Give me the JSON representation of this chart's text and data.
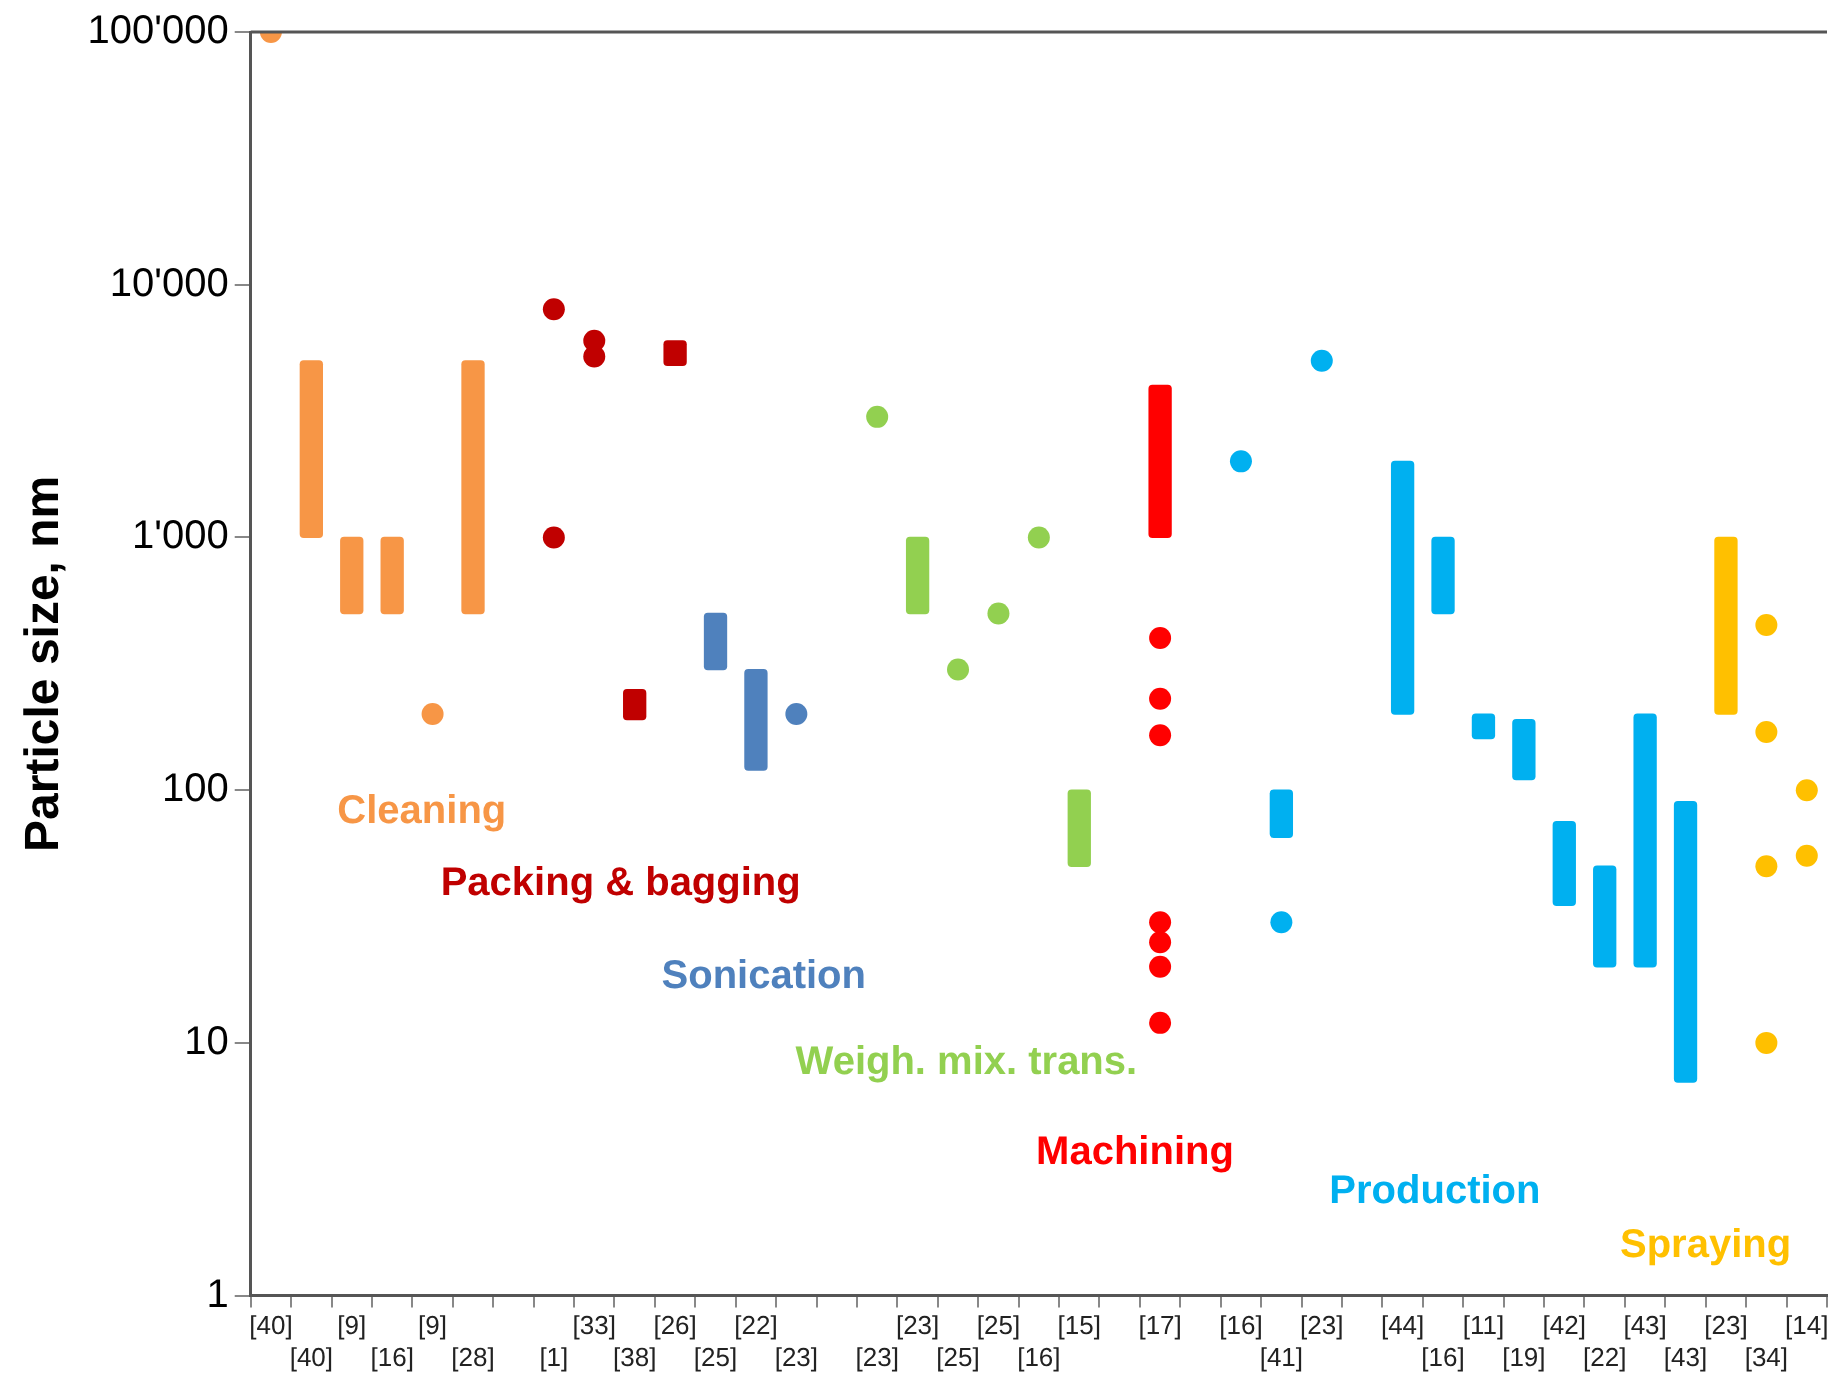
{
  "chart_data": {
    "type": "bar",
    "ylabel": "Particle size, nm",
    "log": "y",
    "grid": false,
    "marker": "circle",
    "ylim": [
      1,
      100000
    ],
    "yticks": [
      1,
      10,
      100,
      {
        "value": 1000,
        "label": "1'000"
      },
      {
        "value": 10000,
        "label": "10'000"
      },
      {
        "value": 100000,
        "label": "100'000"
      }
    ],
    "categories": [
      "[40]",
      "[40]",
      "[9]",
      "[16]",
      "[9]",
      "[28]",
      null,
      "[1]",
      "[33]",
      "[38]",
      "[26]",
      "[25]",
      "[22]",
      "[23]",
      null,
      "[23]",
      "[23]",
      "[25]",
      "[25]",
      "[16]",
      "[15]",
      null,
      "[17]",
      null,
      "[16]",
      "[41]",
      "[23]",
      null,
      "[44]",
      "[16]",
      "[11]",
      "[19]",
      "[42]",
      "[22]",
      "[43]",
      "[43]",
      "[23]",
      "[34]",
      "[14]"
    ],
    "series": [
      {
        "name": "Cleaning",
        "type": "bar",
        "color": "#f79646",
        "base": [
          null,
          1000,
          500,
          500,
          null,
          500,
          null,
          null,
          null,
          null,
          null,
          null,
          null,
          null,
          null,
          null,
          null,
          null,
          null,
          null,
          null,
          null,
          null,
          null,
          null,
          null,
          null,
          null,
          null,
          null,
          null,
          null,
          null,
          null,
          null,
          null,
          null,
          null,
          null
        ],
        "values": [
          null,
          4000,
          500,
          500,
          null,
          4500,
          null,
          null,
          null,
          null,
          null,
          null,
          null,
          null,
          null,
          null,
          null,
          null,
          null,
          null,
          null,
          null,
          null,
          null,
          null,
          null,
          null,
          null,
          null,
          null,
          null,
          null,
          null,
          null,
          null,
          null,
          null,
          null,
          null
        ]
      },
      {
        "name": "Packing & bagging",
        "type": "bar",
        "color": "#c00000",
        "base": [
          null,
          null,
          null,
          null,
          null,
          null,
          null,
          null,
          null,
          190,
          4800,
          null,
          null,
          null,
          null,
          null,
          null,
          null,
          null,
          null,
          null,
          null,
          null,
          null,
          null,
          null,
          null,
          null,
          null,
          null,
          null,
          null,
          null,
          null,
          null,
          null,
          null,
          null,
          null
        ],
        "values": [
          null,
          null,
          null,
          null,
          null,
          null,
          null,
          null,
          null,
          60,
          1200,
          null,
          null,
          null,
          null,
          null,
          null,
          null,
          null,
          null,
          null,
          null,
          null,
          null,
          null,
          null,
          null,
          null,
          null,
          null,
          null,
          null,
          null,
          null,
          null,
          null,
          null,
          null,
          null
        ]
      },
      {
        "name": "Sonication",
        "type": "bar",
        "color": "#4f81bd",
        "base": [
          null,
          null,
          null,
          null,
          null,
          null,
          null,
          null,
          null,
          null,
          null,
          300,
          120,
          null,
          null,
          null,
          null,
          null,
          null,
          null,
          null,
          null,
          null,
          null,
          null,
          null,
          null,
          null,
          null,
          null,
          null,
          null,
          null,
          null,
          null,
          null,
          null,
          null,
          null
        ],
        "values": [
          null,
          null,
          null,
          null,
          null,
          null,
          null,
          null,
          null,
          null,
          null,
          200,
          180,
          null,
          null,
          null,
          null,
          null,
          null,
          null,
          null,
          null,
          null,
          null,
          null,
          null,
          null,
          null,
          null,
          null,
          null,
          null,
          null,
          null,
          null,
          null,
          null,
          null,
          null
        ]
      },
      {
        "name": "Weigh. mix. trans.",
        "type": "bar",
        "color": "#92d050",
        "base": [
          null,
          null,
          null,
          null,
          null,
          null,
          null,
          null,
          null,
          null,
          null,
          null,
          null,
          null,
          null,
          null,
          500,
          null,
          null,
          null,
          50,
          null,
          null,
          null,
          null,
          null,
          null,
          null,
          null,
          null,
          null,
          null,
          null,
          null,
          null,
          null,
          null,
          null,
          null
        ],
        "values": [
          null,
          null,
          null,
          null,
          null,
          null,
          null,
          null,
          null,
          null,
          null,
          null,
          null,
          null,
          null,
          null,
          500,
          null,
          null,
          null,
          50,
          null,
          null,
          null,
          null,
          null,
          null,
          null,
          null,
          null,
          null,
          null,
          null,
          null,
          null,
          null,
          null,
          null,
          null
        ]
      },
      {
        "name": "Machining",
        "type": "bar",
        "color": "#ff0000",
        "base": [
          null,
          null,
          null,
          null,
          null,
          null,
          null,
          null,
          null,
          null,
          null,
          null,
          null,
          null,
          null,
          null,
          null,
          null,
          null,
          null,
          null,
          null,
          1000,
          null,
          null,
          null,
          null,
          null,
          null,
          null,
          null,
          null,
          null,
          null,
          null,
          null,
          null,
          null,
          null
        ],
        "values": [
          null,
          null,
          null,
          null,
          null,
          null,
          null,
          null,
          null,
          null,
          null,
          null,
          null,
          null,
          null,
          null,
          null,
          null,
          null,
          null,
          null,
          null,
          3000,
          null,
          null,
          null,
          null,
          null,
          null,
          null,
          null,
          null,
          null,
          null,
          null,
          null,
          null,
          null,
          null
        ]
      },
      {
        "name": "Production",
        "type": "bar",
        "color": "#00b0f0",
        "base": [
          null,
          null,
          null,
          null,
          null,
          null,
          null,
          null,
          null,
          null,
          null,
          null,
          null,
          null,
          null,
          null,
          null,
          null,
          null,
          null,
          null,
          null,
          null,
          null,
          null,
          65,
          null,
          null,
          200,
          500,
          160,
          110,
          35,
          20,
          20,
          7,
          null,
          null,
          null
        ],
        "values": [
          null,
          null,
          null,
          null,
          null,
          null,
          null,
          null,
          null,
          null,
          null,
          null,
          null,
          null,
          null,
          null,
          null,
          null,
          null,
          null,
          null,
          null,
          null,
          null,
          null,
          35,
          null,
          null,
          1800,
          500,
          40,
          80,
          40,
          30,
          180,
          83,
          null,
          null,
          null
        ]
      },
      {
        "name": "Spraying",
        "type": "bar",
        "color": "#ffc000",
        "base": [
          null,
          null,
          null,
          null,
          null,
          null,
          null,
          null,
          null,
          null,
          null,
          null,
          null,
          null,
          null,
          null,
          null,
          null,
          null,
          null,
          null,
          null,
          null,
          null,
          null,
          null,
          null,
          null,
          null,
          null,
          null,
          null,
          null,
          null,
          null,
          null,
          200,
          null,
          null
        ],
        "values": [
          null,
          null,
          null,
          null,
          null,
          null,
          null,
          null,
          null,
          null,
          null,
          null,
          null,
          null,
          null,
          null,
          null,
          null,
          null,
          null,
          null,
          null,
          null,
          null,
          null,
          null,
          null,
          null,
          null,
          null,
          null,
          null,
          null,
          null,
          null,
          null,
          800,
          null,
          null
        ]
      },
      {
        "type": "scatter",
        "values": [
          100000,
          null,
          null,
          null,
          200,
          null,
          null,
          8000,
          6000,
          null,
          null,
          null,
          null,
          200,
          null,
          3000,
          null,
          300,
          500,
          1000,
          null,
          null,
          400,
          null,
          2000,
          30,
          5000,
          null,
          null,
          null,
          null,
          null,
          null,
          null,
          null,
          null,
          null,
          450,
          100
        ],
        "colors": [
          "#f79646",
          null,
          null,
          null,
          "#f79646",
          null,
          null,
          "#c00000",
          "#c00000",
          null,
          null,
          null,
          null,
          "#4f81bd",
          null,
          "#92d050",
          null,
          "#92d050",
          "#92d050",
          "#92d050",
          null,
          null,
          "#ff0000",
          null,
          "#00b0f0",
          "#00b0f0",
          "#00b0f0",
          null,
          null,
          null,
          null,
          null,
          null,
          null,
          null,
          null,
          null,
          "#ffc000",
          "#ffc000"
        ]
      },
      {
        "type": "scatter",
        "values": [
          null,
          null,
          null,
          null,
          null,
          null,
          null,
          1000,
          5200,
          null,
          null,
          null,
          null,
          null,
          null,
          null,
          null,
          null,
          null,
          null,
          null,
          null,
          230,
          null,
          null,
          null,
          null,
          null,
          null,
          null,
          null,
          null,
          null,
          null,
          null,
          null,
          null,
          170,
          55
        ],
        "colors": [
          null,
          null,
          null,
          null,
          null,
          null,
          null,
          "#c00000",
          "#c00000",
          null,
          null,
          null,
          null,
          null,
          null,
          null,
          null,
          null,
          null,
          null,
          null,
          null,
          "#ff0000",
          null,
          null,
          null,
          null,
          null,
          null,
          null,
          null,
          null,
          null,
          null,
          null,
          null,
          null,
          "#ffc000",
          "#ffc000"
        ]
      },
      {
        "type": "scatter",
        "values": [
          null,
          null,
          null,
          null,
          null,
          null,
          null,
          null,
          null,
          null,
          null,
          null,
          null,
          null,
          null,
          null,
          null,
          null,
          null,
          null,
          null,
          null,
          165,
          null,
          null,
          null,
          null,
          null,
          null,
          null,
          null,
          null,
          null,
          null,
          null,
          null,
          null,
          50,
          null
        ],
        "colors": [
          null,
          null,
          null,
          null,
          null,
          null,
          null,
          null,
          null,
          null,
          null,
          null,
          null,
          null,
          null,
          null,
          null,
          null,
          null,
          null,
          null,
          null,
          "#ff0000",
          null,
          null,
          null,
          null,
          null,
          null,
          null,
          null,
          null,
          null,
          null,
          null,
          null,
          null,
          "#ffc000",
          null
        ]
      },
      {
        "type": "scatter",
        "values": [
          null,
          null,
          null,
          null,
          null,
          null,
          null,
          null,
          null,
          null,
          null,
          null,
          null,
          null,
          null,
          null,
          null,
          null,
          null,
          null,
          null,
          null,
          30,
          null,
          null,
          null,
          null,
          null,
          null,
          null,
          null,
          null,
          null,
          null,
          null,
          null,
          null,
          10,
          null
        ],
        "colors": [
          null,
          null,
          null,
          null,
          null,
          null,
          null,
          null,
          null,
          null,
          null,
          null,
          null,
          null,
          null,
          null,
          null,
          null,
          null,
          null,
          null,
          null,
          "#ff0000",
          null,
          null,
          null,
          null,
          null,
          null,
          null,
          null,
          null,
          null,
          null,
          null,
          null,
          null,
          "#ffc000",
          null
        ]
      },
      {
        "type": "scatter",
        "values": [
          null,
          null,
          null,
          null,
          null,
          null,
          null,
          null,
          null,
          null,
          null,
          null,
          null,
          null,
          null,
          null,
          null,
          null,
          null,
          null,
          null,
          null,
          25,
          null,
          null,
          null,
          null,
          null,
          null,
          null,
          null,
          null,
          null,
          null,
          null,
          null,
          null,
          null,
          null
        ],
        "colors": [
          null,
          null,
          null,
          null,
          null,
          null,
          null,
          null,
          null,
          null,
          null,
          null,
          null,
          null,
          null,
          null,
          null,
          null,
          null,
          null,
          null,
          null,
          "#ff0000",
          null,
          null,
          null,
          null,
          null,
          null,
          null,
          null,
          null,
          null,
          null,
          null,
          null,
          null,
          null,
          null
        ]
      },
      {
        "type": "scatter",
        "values": [
          null,
          null,
          null,
          null,
          null,
          null,
          null,
          null,
          null,
          null,
          null,
          null,
          null,
          null,
          null,
          null,
          null,
          null,
          null,
          null,
          null,
          null,
          20,
          null,
          null,
          null,
          null,
          null,
          null,
          null,
          null,
          null,
          null,
          null,
          null,
          null,
          null,
          null,
          null
        ],
        "colors": [
          null,
          null,
          null,
          null,
          null,
          null,
          null,
          null,
          null,
          null,
          null,
          null,
          null,
          null,
          null,
          null,
          null,
          null,
          null,
          null,
          null,
          null,
          "#ff0000",
          null,
          null,
          null,
          null,
          null,
          null,
          null,
          null,
          null,
          null,
          null,
          null,
          null,
          null,
          null,
          null
        ]
      },
      {
        "type": "scatter",
        "values": [
          null,
          null,
          null,
          null,
          null,
          null,
          null,
          null,
          null,
          null,
          null,
          null,
          null,
          null,
          null,
          null,
          null,
          null,
          null,
          null,
          null,
          null,
          12,
          null,
          null,
          null,
          null,
          null,
          null,
          null,
          null,
          null,
          null,
          null,
          null,
          null,
          null,
          null,
          null
        ],
        "colors": [
          null,
          null,
          null,
          null,
          null,
          null,
          null,
          null,
          null,
          null,
          null,
          null,
          null,
          null,
          null,
          null,
          null,
          null,
          null,
          null,
          null,
          null,
          "#ff0000",
          null,
          null,
          null,
          null,
          null,
          null,
          null,
          null,
          null,
          null,
          null,
          null,
          null,
          null,
          null,
          null
        ]
      }
    ]
  }
}
